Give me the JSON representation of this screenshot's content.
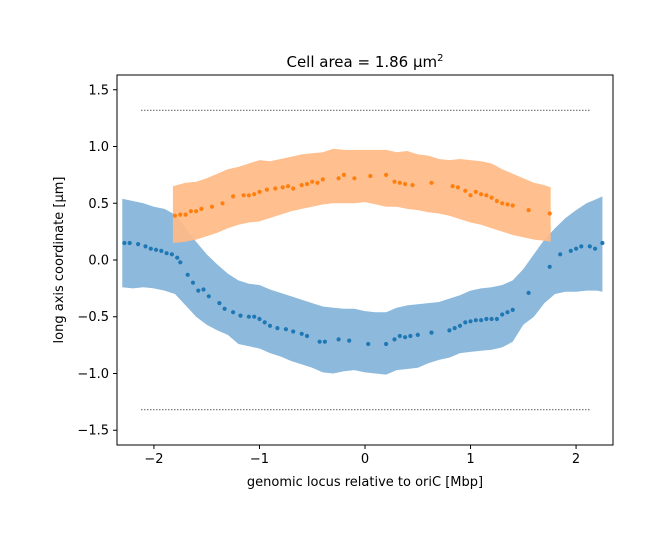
{
  "chart_data": {
    "type": "scatter",
    "title": "Cell area = 1.86 μm",
    "title_superscript": "2",
    "xlabel": "genomic locus relative to oriC [Mbp]",
    "ylabel": "long axis coordinate [μm]",
    "xlim": [
      -2.35,
      2.35
    ],
    "ylim": [
      -1.63,
      1.63
    ],
    "xticks": [
      -2,
      -1,
      0,
      1,
      2
    ],
    "xtick_labels": [
      "−2",
      "−1",
      "0",
      "1",
      "2"
    ],
    "yticks": [
      -1.5,
      -1.0,
      -0.5,
      0.0,
      0.5,
      1.0,
      1.5
    ],
    "ytick_labels": [
      "−1.5",
      "−1.0",
      "−0.5",
      "0.0",
      "0.5",
      "1.0",
      "1.5"
    ],
    "grid": false,
    "cell_boundary_lines": [
      1.32,
      -1.32
    ],
    "series": [
      {
        "color": "#1f77b4",
        "band_color": "#8bb8dc",
        "band_opacity": 0.99,
        "points": [
          [
            -2.28,
            0.15
          ],
          [
            -2.23,
            0.15
          ],
          [
            -2.15,
            0.14
          ],
          [
            -2.08,
            0.12
          ],
          [
            -2.03,
            0.1
          ],
          [
            -1.98,
            0.09
          ],
          [
            -1.93,
            0.08
          ],
          [
            -1.88,
            0.06
          ],
          [
            -1.83,
            0.05
          ],
          [
            -1.78,
            0.02
          ],
          [
            -1.75,
            -0.02
          ],
          [
            -1.68,
            -0.13
          ],
          [
            -1.63,
            -0.2
          ],
          [
            -1.58,
            -0.27
          ],
          [
            -1.53,
            -0.26
          ],
          [
            -1.48,
            -0.32
          ],
          [
            -1.38,
            -0.38
          ],
          [
            -1.33,
            -0.43
          ],
          [
            -1.25,
            -0.46
          ],
          [
            -1.18,
            -0.49
          ],
          [
            -1.1,
            -0.5
          ],
          [
            -1.05,
            -0.5
          ],
          [
            -1.0,
            -0.52
          ],
          [
            -0.95,
            -0.55
          ],
          [
            -0.9,
            -0.58
          ],
          [
            -0.83,
            -0.6
          ],
          [
            -0.75,
            -0.61
          ],
          [
            -0.68,
            -0.63
          ],
          [
            -0.6,
            -0.65
          ],
          [
            -0.55,
            -0.67
          ],
          [
            -0.43,
            -0.72
          ],
          [
            -0.38,
            -0.72
          ],
          [
            -0.25,
            -0.7
          ],
          [
            -0.15,
            -0.71
          ],
          [
            0.03,
            -0.74
          ],
          [
            0.2,
            -0.74
          ],
          [
            0.28,
            -0.7
          ],
          [
            0.33,
            -0.67
          ],
          [
            0.38,
            -0.68
          ],
          [
            0.43,
            -0.67
          ],
          [
            0.5,
            -0.66
          ],
          [
            0.63,
            -0.64
          ],
          [
            0.8,
            -0.62
          ],
          [
            0.85,
            -0.6
          ],
          [
            0.9,
            -0.58
          ],
          [
            0.95,
            -0.55
          ],
          [
            1.0,
            -0.54
          ],
          [
            1.05,
            -0.53
          ],
          [
            1.1,
            -0.53
          ],
          [
            1.15,
            -0.52
          ],
          [
            1.2,
            -0.52
          ],
          [
            1.25,
            -0.52
          ],
          [
            1.3,
            -0.48
          ],
          [
            1.35,
            -0.46
          ],
          [
            1.4,
            -0.44
          ],
          [
            1.55,
            -0.29
          ],
          [
            1.75,
            -0.06
          ],
          [
            1.85,
            0.05
          ],
          [
            1.95,
            0.08
          ],
          [
            2.0,
            0.1
          ],
          [
            2.05,
            0.12
          ],
          [
            2.13,
            0.12
          ],
          [
            2.18,
            0.1
          ],
          [
            2.25,
            0.15
          ]
        ],
        "band_upper": [
          [
            -2.3,
            0.54
          ],
          [
            -2.2,
            0.52
          ],
          [
            -2.1,
            0.5
          ],
          [
            -2.0,
            0.47
          ],
          [
            -1.9,
            0.45
          ],
          [
            -1.8,
            0.4
          ],
          [
            -1.7,
            0.28
          ],
          [
            -1.6,
            0.16
          ],
          [
            -1.5,
            0.05
          ],
          [
            -1.4,
            -0.04
          ],
          [
            -1.3,
            -0.12
          ],
          [
            -1.2,
            -0.18
          ],
          [
            -1.1,
            -0.21
          ],
          [
            -1.0,
            -0.22
          ],
          [
            -0.9,
            -0.26
          ],
          [
            -0.8,
            -0.29
          ],
          [
            -0.7,
            -0.32
          ],
          [
            -0.6,
            -0.35
          ],
          [
            -0.5,
            -0.38
          ],
          [
            -0.4,
            -0.41
          ],
          [
            -0.3,
            -0.42
          ],
          [
            -0.2,
            -0.43
          ],
          [
            -0.1,
            -0.43
          ],
          [
            0.0,
            -0.45
          ],
          [
            0.1,
            -0.46
          ],
          [
            0.2,
            -0.46
          ],
          [
            0.3,
            -0.42
          ],
          [
            0.4,
            -0.4
          ],
          [
            0.5,
            -0.39
          ],
          [
            0.6,
            -0.38
          ],
          [
            0.7,
            -0.37
          ],
          [
            0.8,
            -0.34
          ],
          [
            0.9,
            -0.31
          ],
          [
            1.0,
            -0.27
          ],
          [
            1.1,
            -0.25
          ],
          [
            1.2,
            -0.24
          ],
          [
            1.3,
            -0.22
          ],
          [
            1.4,
            -0.18
          ],
          [
            1.5,
            -0.08
          ],
          [
            1.6,
            0.05
          ],
          [
            1.7,
            0.18
          ],
          [
            1.8,
            0.28
          ],
          [
            1.9,
            0.37
          ],
          [
            2.0,
            0.44
          ],
          [
            2.1,
            0.5
          ],
          [
            2.2,
            0.54
          ],
          [
            2.25,
            0.56
          ]
        ],
        "band_lower": [
          [
            -2.3,
            -0.24
          ],
          [
            -2.2,
            -0.25
          ],
          [
            -2.1,
            -0.24
          ],
          [
            -2.0,
            -0.25
          ],
          [
            -1.9,
            -0.27
          ],
          [
            -1.8,
            -0.3
          ],
          [
            -1.7,
            -0.4
          ],
          [
            -1.6,
            -0.5
          ],
          [
            -1.5,
            -0.57
          ],
          [
            -1.4,
            -0.62
          ],
          [
            -1.3,
            -0.66
          ],
          [
            -1.2,
            -0.74
          ],
          [
            -1.1,
            -0.76
          ],
          [
            -1.0,
            -0.78
          ],
          [
            -0.9,
            -0.82
          ],
          [
            -0.8,
            -0.85
          ],
          [
            -0.7,
            -0.89
          ],
          [
            -0.6,
            -0.92
          ],
          [
            -0.5,
            -0.95
          ],
          [
            -0.4,
            -0.99
          ],
          [
            -0.3,
            -1.0
          ],
          [
            -0.2,
            -0.98
          ],
          [
            -0.1,
            -0.97
          ],
          [
            0.0,
            -0.99
          ],
          [
            0.1,
            -1.0
          ],
          [
            0.2,
            -1.01
          ],
          [
            0.3,
            -0.97
          ],
          [
            0.4,
            -0.96
          ],
          [
            0.5,
            -0.95
          ],
          [
            0.6,
            -0.91
          ],
          [
            0.7,
            -0.88
          ],
          [
            0.8,
            -0.86
          ],
          [
            0.9,
            -0.82
          ],
          [
            1.0,
            -0.81
          ],
          [
            1.1,
            -0.8
          ],
          [
            1.2,
            -0.79
          ],
          [
            1.3,
            -0.77
          ],
          [
            1.4,
            -0.72
          ],
          [
            1.5,
            -0.57
          ],
          [
            1.6,
            -0.5
          ],
          [
            1.7,
            -0.38
          ],
          [
            1.8,
            -0.3
          ],
          [
            1.9,
            -0.28
          ],
          [
            2.0,
            -0.28
          ],
          [
            2.1,
            -0.27
          ],
          [
            2.2,
            -0.27
          ],
          [
            2.25,
            -0.28
          ]
        ]
      },
      {
        "color": "#ff7f0e",
        "band_color": "#ffba84",
        "band_opacity": 0.92,
        "points": [
          [
            -1.8,
            0.39
          ],
          [
            -1.75,
            0.4
          ],
          [
            -1.7,
            0.4
          ],
          [
            -1.65,
            0.43
          ],
          [
            -1.6,
            0.43
          ],
          [
            -1.55,
            0.45
          ],
          [
            -1.45,
            0.47
          ],
          [
            -1.35,
            0.5
          ],
          [
            -1.25,
            0.56
          ],
          [
            -1.15,
            0.57
          ],
          [
            -1.1,
            0.57
          ],
          [
            -1.05,
            0.58
          ],
          [
            -1.0,
            0.6
          ],
          [
            -0.93,
            0.62
          ],
          [
            -0.85,
            0.63
          ],
          [
            -0.78,
            0.64
          ],
          [
            -0.73,
            0.65
          ],
          [
            -0.68,
            0.63
          ],
          [
            -0.6,
            0.66
          ],
          [
            -0.55,
            0.67
          ],
          [
            -0.5,
            0.69
          ],
          [
            -0.45,
            0.68
          ],
          [
            -0.4,
            0.71
          ],
          [
            -0.25,
            0.72
          ],
          [
            -0.2,
            0.75
          ],
          [
            -0.1,
            0.72
          ],
          [
            0.05,
            0.74
          ],
          [
            0.2,
            0.75
          ],
          [
            0.28,
            0.69
          ],
          [
            0.33,
            0.68
          ],
          [
            0.38,
            0.67
          ],
          [
            0.45,
            0.66
          ],
          [
            0.63,
            0.68
          ],
          [
            0.83,
            0.65
          ],
          [
            0.88,
            0.64
          ],
          [
            0.95,
            0.61
          ],
          [
            1.0,
            0.57
          ],
          [
            1.05,
            0.6
          ],
          [
            1.1,
            0.58
          ],
          [
            1.15,
            0.57
          ],
          [
            1.2,
            0.55
          ],
          [
            1.25,
            0.52
          ],
          [
            1.3,
            0.5
          ],
          [
            1.35,
            0.49
          ],
          [
            1.4,
            0.48
          ],
          [
            1.55,
            0.44
          ],
          [
            1.75,
            0.41
          ]
        ],
        "band_upper": [
          [
            -1.82,
            0.65
          ],
          [
            -1.7,
            0.68
          ],
          [
            -1.6,
            0.69
          ],
          [
            -1.5,
            0.72
          ],
          [
            -1.4,
            0.76
          ],
          [
            -1.3,
            0.8
          ],
          [
            -1.2,
            0.82
          ],
          [
            -1.1,
            0.85
          ],
          [
            -1.0,
            0.88
          ],
          [
            -0.9,
            0.87
          ],
          [
            -0.8,
            0.89
          ],
          [
            -0.7,
            0.91
          ],
          [
            -0.6,
            0.93
          ],
          [
            -0.5,
            0.94
          ],
          [
            -0.4,
            0.95
          ],
          [
            -0.3,
            0.98
          ],
          [
            -0.2,
            0.97
          ],
          [
            -0.1,
            0.97
          ],
          [
            0.0,
            0.97
          ],
          [
            0.1,
            0.97
          ],
          [
            0.2,
            0.97
          ],
          [
            0.3,
            0.95
          ],
          [
            0.4,
            0.96
          ],
          [
            0.5,
            0.93
          ],
          [
            0.6,
            0.92
          ],
          [
            0.7,
            0.89
          ],
          [
            0.8,
            0.88
          ],
          [
            0.9,
            0.89
          ],
          [
            1.0,
            0.88
          ],
          [
            1.1,
            0.87
          ],
          [
            1.2,
            0.85
          ],
          [
            1.3,
            0.8
          ],
          [
            1.4,
            0.76
          ],
          [
            1.5,
            0.72
          ],
          [
            1.6,
            0.68
          ],
          [
            1.7,
            0.66
          ],
          [
            1.76,
            0.64
          ]
        ],
        "band_lower": [
          [
            -1.82,
            0.15
          ],
          [
            -1.7,
            0.16
          ],
          [
            -1.6,
            0.18
          ],
          [
            -1.5,
            0.21
          ],
          [
            -1.4,
            0.24
          ],
          [
            -1.3,
            0.28
          ],
          [
            -1.2,
            0.31
          ],
          [
            -1.1,
            0.33
          ],
          [
            -1.0,
            0.34
          ],
          [
            -0.9,
            0.37
          ],
          [
            -0.8,
            0.4
          ],
          [
            -0.7,
            0.43
          ],
          [
            -0.6,
            0.45
          ],
          [
            -0.5,
            0.47
          ],
          [
            -0.4,
            0.49
          ],
          [
            -0.3,
            0.5
          ],
          [
            -0.2,
            0.5
          ],
          [
            -0.1,
            0.5
          ],
          [
            0.0,
            0.51
          ],
          [
            0.1,
            0.49
          ],
          [
            0.2,
            0.47
          ],
          [
            0.3,
            0.47
          ],
          [
            0.4,
            0.45
          ],
          [
            0.5,
            0.44
          ],
          [
            0.6,
            0.42
          ],
          [
            0.7,
            0.41
          ],
          [
            0.8,
            0.39
          ],
          [
            0.9,
            0.36
          ],
          [
            1.0,
            0.33
          ],
          [
            1.1,
            0.31
          ],
          [
            1.2,
            0.28
          ],
          [
            1.3,
            0.25
          ],
          [
            1.4,
            0.22
          ],
          [
            1.5,
            0.2
          ],
          [
            1.6,
            0.18
          ],
          [
            1.7,
            0.17
          ],
          [
            1.76,
            0.16
          ]
        ]
      }
    ]
  }
}
